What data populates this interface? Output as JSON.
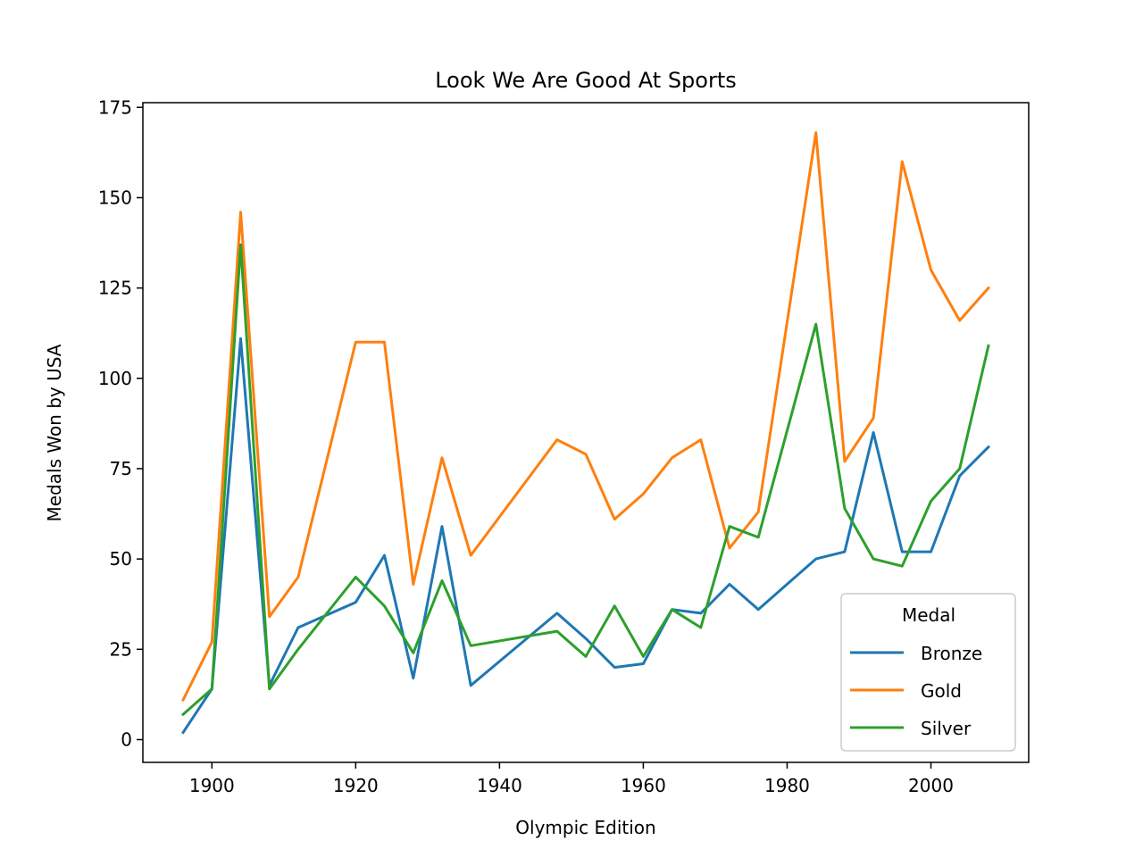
{
  "chart_data": {
    "type": "line",
    "title": "Look We Are Good At Sports",
    "xlabel": "Olympic Edition",
    "ylabel": "Medals Won by USA",
    "xlim": [
      1890.4,
      2013.6
    ],
    "ylim": [
      -6.3,
      176.3
    ],
    "x_ticks": [
      1900,
      1920,
      1940,
      1960,
      1980,
      2000
    ],
    "y_ticks": [
      0,
      25,
      50,
      75,
      100,
      125,
      150,
      175
    ],
    "grid": false,
    "legend": {
      "title": "Medal",
      "placement": "lower-right"
    },
    "x": [
      1896,
      1900,
      1904,
      1908,
      1912,
      1920,
      1924,
      1928,
      1932,
      1936,
      1948,
      1952,
      1956,
      1960,
      1964,
      1968,
      1972,
      1976,
      1984,
      1988,
      1992,
      1996,
      2000,
      2004,
      2008
    ],
    "series": [
      {
        "name": "Bronze",
        "color": "#1f77b4",
        "values": [
          2,
          14,
          111,
          15,
          31,
          38,
          51,
          17,
          59,
          15,
          35,
          28,
          20,
          21,
          36,
          35,
          43,
          36,
          50,
          52,
          85,
          52,
          52,
          73,
          81
        ]
      },
      {
        "name": "Gold",
        "color": "#ff7f0e",
        "values": [
          11,
          27,
          146,
          34,
          45,
          110,
          110,
          43,
          78,
          51,
          83,
          79,
          61,
          68,
          78,
          83,
          53,
          63,
          168,
          77,
          89,
          160,
          130,
          116,
          125
        ]
      },
      {
        "name": "Silver",
        "color": "#2ca02c",
        "values": [
          7,
          14,
          137,
          14,
          25,
          45,
          37,
          24,
          44,
          26,
          30,
          23,
          37,
          23,
          36,
          31,
          59,
          56,
          115,
          64,
          50,
          48,
          66,
          75,
          109
        ]
      }
    ]
  }
}
